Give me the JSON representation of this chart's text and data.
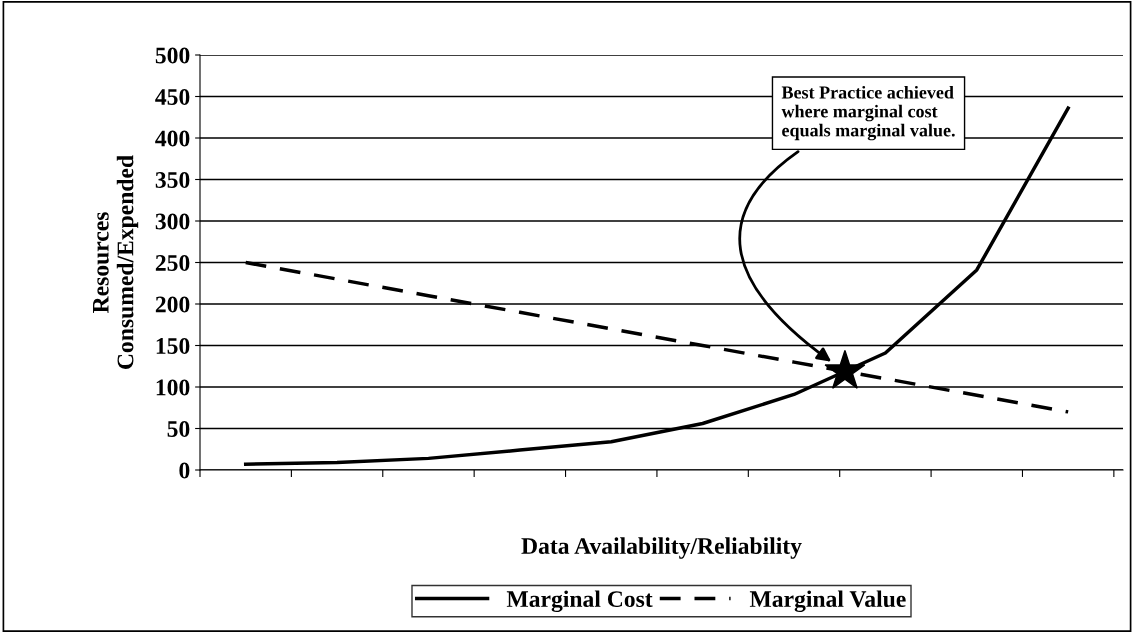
{
  "chart_data": {
    "type": "line",
    "xlabel": "Data Availability/Reliability",
    "ylabel": "Resources\nConsumed/Expended",
    "categories": [
      null,
      null,
      null,
      null,
      null,
      null,
      null,
      null,
      null,
      null
    ],
    "series": [
      {
        "name": "Marginal Cost",
        "color": "#000000",
        "line_style": "solid",
        "values": [
          7,
          9,
          14,
          24,
          34,
          56,
          91,
          141,
          241,
          436
        ]
      },
      {
        "name": "Marginal Value",
        "color": "#000000",
        "line_style": "dashed",
        "values": [
          250,
          230,
          210,
          190,
          170,
          150,
          130,
          110,
          90,
          70
        ]
      }
    ],
    "ylim": [
      0,
      500
    ],
    "yticks": [
      0,
      50,
      100,
      150,
      200,
      250,
      300,
      350,
      400,
      450,
      500
    ],
    "grid": "y",
    "legend": "bottom",
    "marker": "none",
    "annotations": [
      "Best Practice achieved\nwhere marginal cost\nequals marginal value."
    ]
  }
}
